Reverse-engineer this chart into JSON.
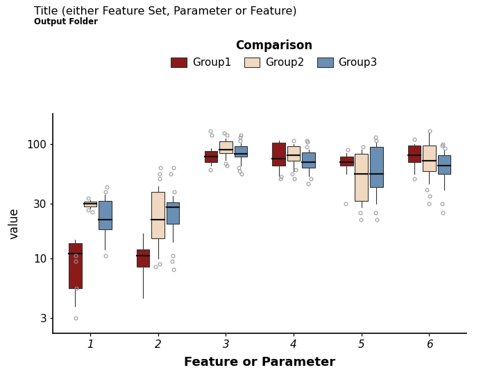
{
  "title": "Title (either Feature Set, Parameter or Feature)",
  "subtitle": "Output Folder",
  "xlabel": "Feature or Parameter",
  "ylabel": "value",
  "legend_title": "Comparison",
  "groups": [
    "Group1",
    "Group2",
    "Group3"
  ],
  "group_colors": [
    "#8B1A1A",
    "#F0D9C0",
    "#6A8FB5"
  ],
  "group_edge_colors": [
    "#5a0f0f",
    "#b09878",
    "#3d5f82"
  ],
  "features": [
    "1",
    "2",
    "3",
    "4",
    "5",
    "6"
  ],
  "boxplot_stats": {
    "Group1": [
      {
        "whislo": 3.8,
        "q1": 5.5,
        "med": 11.0,
        "q3": 13.5,
        "whishi": 14.5,
        "fliers": [
          3.0,
          5.5,
          9.5,
          10.5
        ]
      },
      {
        "whislo": 4.5,
        "q1": 8.5,
        "med": 10.5,
        "q3": 12.0,
        "whishi": 16.5,
        "fliers": []
      },
      {
        "whislo": 65.0,
        "q1": 70.0,
        "med": 78.0,
        "q3": 87.0,
        "whishi": 92.0,
        "fliers": [
          60.0,
          120.0,
          130.0
        ]
      },
      {
        "whislo": 53.0,
        "q1": 65.0,
        "med": 75.0,
        "q3": 103.0,
        "whishi": 108.0,
        "fliers": [
          50.0,
          52.0
        ]
      },
      {
        "whislo": 55.0,
        "q1": 65.0,
        "med": 70.0,
        "q3": 78.0,
        "whishi": 83.0,
        "fliers": [
          30.0,
          90.0
        ]
      },
      {
        "whislo": 55.0,
        "q1": 70.0,
        "med": 80.0,
        "q3": 98.0,
        "whishi": 100.0,
        "fliers": [
          50.0,
          110.0
        ]
      }
    ],
    "Group2": [
      {
        "whislo": 27.5,
        "q1": 28.5,
        "med": 30.0,
        "q3": 31.5,
        "whishi": 32.5,
        "fliers": [
          25.5,
          26.5,
          33.5
        ]
      },
      {
        "whislo": 10.0,
        "q1": 15.0,
        "med": 22.0,
        "q3": 38.0,
        "whishi": 43.0,
        "fliers": [
          8.5,
          9.0,
          50.0,
          55.0,
          62.0
        ]
      },
      {
        "whislo": 73.0,
        "q1": 83.0,
        "med": 90.0,
        "q3": 106.0,
        "whishi": 112.0,
        "fliers": [
          65.0,
          68.0,
          120.0,
          125.0
        ]
      },
      {
        "whislo": 58.0,
        "q1": 72.0,
        "med": 80.0,
        "q3": 96.0,
        "whishi": 100.0,
        "fliers": [
          50.0,
          55.0,
          60.0,
          108.0
        ]
      },
      {
        "whislo": 28.0,
        "q1": 32.0,
        "med": 55.0,
        "q3": 82.0,
        "whishi": 90.0,
        "fliers": [
          22.0,
          25.0,
          95.0
        ]
      },
      {
        "whislo": 45.0,
        "q1": 58.0,
        "med": 72.0,
        "q3": 98.0,
        "whishi": 125.0,
        "fliers": [
          30.0,
          35.0,
          40.0,
          130.0
        ]
      }
    ],
    "Group3": [
      {
        "whislo": 12.0,
        "q1": 18.0,
        "med": 22.0,
        "q3": 32.0,
        "whishi": 36.0,
        "fliers": [
          10.5,
          38.0,
          42.0
        ]
      },
      {
        "whislo": 14.0,
        "q1": 20.0,
        "med": 28.0,
        "q3": 31.0,
        "whishi": 35.0,
        "fliers": [
          8.0,
          9.5,
          10.5,
          38.0,
          55.0,
          62.0
        ]
      },
      {
        "whislo": 65.0,
        "q1": 78.0,
        "med": 82.0,
        "q3": 96.0,
        "whishi": 102.0,
        "fliers": [
          55.0,
          58.0,
          62.0,
          108.0,
          115.0,
          120.0
        ]
      },
      {
        "whislo": 53.0,
        "q1": 62.0,
        "med": 70.0,
        "q3": 85.0,
        "whishi": 90.0,
        "fliers": [
          45.0,
          50.0,
          95.0,
          105.0,
          108.0
        ]
      },
      {
        "whislo": 30.0,
        "q1": 42.0,
        "med": 55.0,
        "q3": 95.0,
        "whishi": 103.0,
        "fliers": [
          22.0,
          25.0,
          108.0,
          115.0
        ]
      },
      {
        "whislo": 40.0,
        "q1": 55.0,
        "med": 65.0,
        "q3": 80.0,
        "whishi": 88.0,
        "fliers": [
          25.0,
          30.0,
          92.0,
          98.0,
          100.0
        ]
      }
    ]
  },
  "ytick_values": [
    3,
    10,
    30,
    100
  ],
  "ylim_data": [
    2.2,
    185
  ],
  "box_width": 0.19,
  "group_offsets": [
    -0.22,
    0.0,
    0.22
  ],
  "flier_color": "#999999",
  "flier_size": 3.5,
  "background_color": "#ffffff",
  "figsize": [
    6.93,
    5.47
  ],
  "dpi": 100
}
